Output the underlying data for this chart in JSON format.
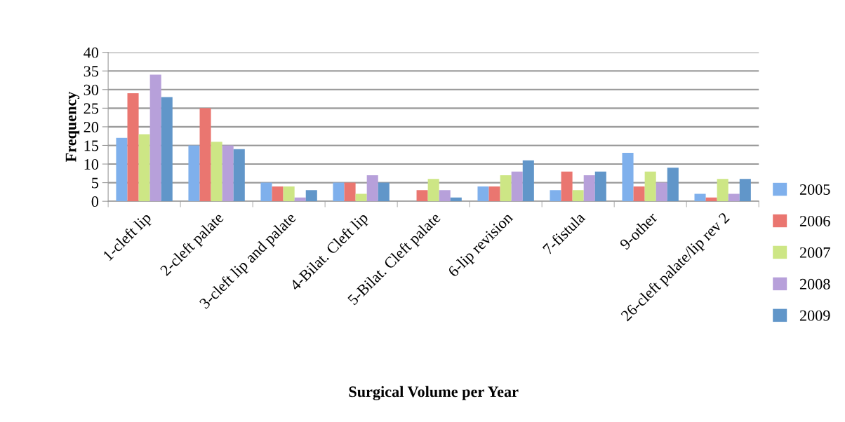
{
  "chart_data": {
    "type": "bar",
    "xlabel": "Surgical Volume per Year",
    "ylabel": "Frequency",
    "categories": [
      "1-cleft lip",
      "2-cleft palate",
      "3-cleft lip and palate",
      "4-Bilat. Cleft lip",
      "5-Bilat. Cleft palate",
      "6-lip revision",
      "7-fistula",
      "9-other",
      "26-cleft palate/lip rev 2"
    ],
    "series": [
      {
        "name": "2005",
        "color": "#7fb0ec",
        "values": [
          17,
          15,
          5,
          5,
          0,
          4,
          3,
          13,
          2
        ]
      },
      {
        "name": "2006",
        "color": "#ea7670",
        "values": [
          29,
          25,
          4,
          5,
          3,
          4,
          8,
          4,
          1
        ]
      },
      {
        "name": "2007",
        "color": "#cde685",
        "values": [
          18,
          16,
          4,
          2,
          6,
          7,
          3,
          8,
          6
        ]
      },
      {
        "name": "2008",
        "color": "#b7a0da",
        "values": [
          34,
          15,
          1,
          7,
          3,
          8,
          7,
          5,
          2
        ]
      },
      {
        "name": "2009",
        "color": "#6196c9",
        "values": [
          28,
          14,
          3,
          5,
          1,
          11,
          8,
          9,
          6
        ]
      }
    ],
    "ylim": [
      0,
      40
    ],
    "yticks": [
      0,
      5,
      10,
      15,
      20,
      25,
      30,
      35,
      40
    ],
    "grid": "y",
    "legend": "right"
  }
}
